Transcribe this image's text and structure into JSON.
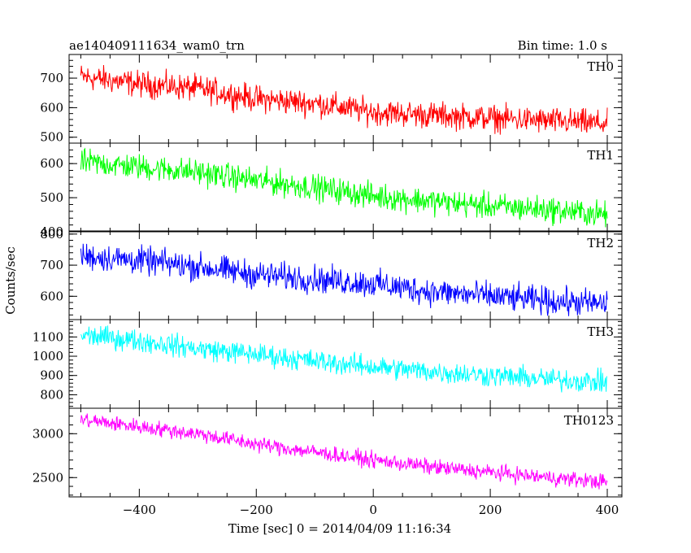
{
  "chart_data": {
    "type": "line",
    "title": "ae140409111634_wam0_trn",
    "bin_time_label": "Bin time: 1.0 s",
    "xlabel": "Time [sec] 0 = 2014/04/09 11:16:34",
    "ylabel": "Counts/sec",
    "x_range": [
      -520,
      425
    ],
    "x_ticks": [
      -400,
      -200,
      0,
      200,
      400
    ],
    "x_tick_labels": [
      "−400",
      "−200",
      "0",
      "200",
      "400"
    ],
    "grid": false,
    "legend": "none",
    "panels": [
      {
        "name": "TH0",
        "color": "#ff0000",
        "ylim": [
          480,
          780
        ],
        "yticks": [
          500,
          600,
          700
        ],
        "series": [
          {
            "x": [
              -500,
              -400,
              -300,
              -200,
              -100,
              0,
              100,
              200,
              300,
              400
            ],
            "y": [
              705,
              680,
              665,
              630,
              615,
              585,
              575,
              565,
              555,
              545
            ]
          }
        ],
        "noise": 35
      },
      {
        "name": "TH1",
        "color": "#00ff00",
        "ylim": [
          400,
          660
        ],
        "yticks": [
          400,
          500,
          600
        ],
        "series": [
          {
            "x": [
              -500,
              -400,
              -300,
              -200,
              -100,
              0,
              100,
              200,
              300,
              400
            ],
            "y": [
              605,
              590,
              575,
              550,
              530,
              505,
              490,
              475,
              465,
              450
            ]
          }
        ],
        "noise": 30
      },
      {
        "name": "TH2",
        "color": "#0000ff",
        "ylim": [
          525,
          810
        ],
        "yticks": [
          600,
          700,
          800
        ],
        "series": [
          {
            "x": [
              -500,
              -400,
              -300,
              -200,
              -100,
              0,
              100,
              200,
              300,
              400
            ],
            "y": [
              730,
              715,
              695,
              670,
              655,
              640,
              615,
              600,
              585,
              575
            ]
          }
        ],
        "noise": 35
      },
      {
        "name": "TH3",
        "color": "#00ffff",
        "ylim": [
          730,
          1190
        ],
        "yticks": [
          800,
          900,
          1000,
          1100
        ],
        "series": [
          {
            "x": [
              -500,
              -400,
              -300,
              -200,
              -100,
              0,
              100,
              200,
              300,
              400
            ],
            "y": [
              1110,
              1080,
              1040,
              1010,
              975,
              945,
              920,
              900,
              880,
              865
            ]
          }
        ],
        "noise": 45
      },
      {
        "name": "TH0123",
        "color": "#ff00ff",
        "ylim": [
          2280,
          3290
        ],
        "yticks": [
          2500,
          3000
        ],
        "series": [
          {
            "x": [
              -500,
              -400,
              -300,
              -200,
              -100,
              0,
              100,
              200,
              300,
              400
            ],
            "y": [
              3160,
              3080,
              3000,
              2880,
              2790,
              2700,
              2620,
              2560,
              2500,
              2450
            ]
          }
        ],
        "noise": 70
      }
    ]
  }
}
